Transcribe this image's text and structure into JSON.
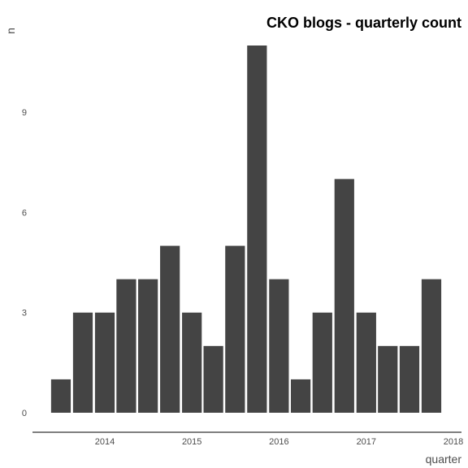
{
  "chart_data": {
    "type": "bar",
    "title": "CKO blogs - quarterly count",
    "xlabel": "quarter",
    "ylabel": "n",
    "categories": [
      "2013-Q3",
      "2013-Q4",
      "2014-Q1",
      "2014-Q2",
      "2014-Q3",
      "2014-Q4",
      "2015-Q1",
      "2015-Q2",
      "2015-Q3",
      "2015-Q4",
      "2016-Q1",
      "2016-Q2",
      "2016-Q3",
      "2016-Q4",
      "2017-Q1",
      "2017-Q2",
      "2017-Q3",
      "2017-Q4"
    ],
    "x": [
      "2013-07-01",
      "2013-10-01",
      "2014-01-01",
      "2014-04-01",
      "2014-07-01",
      "2014-10-01",
      "2015-01-01",
      "2015-04-01",
      "2015-07-01",
      "2015-10-01",
      "2016-01-01",
      "2016-04-01",
      "2016-07-01",
      "2016-10-01",
      "2017-01-01",
      "2017-04-01",
      "2017-07-01",
      "2017-10-01"
    ],
    "values": [
      1,
      3,
      3,
      4,
      4,
      5,
      3,
      2,
      5,
      11,
      4,
      1,
      3,
      7,
      3,
      2,
      2,
      4
    ],
    "ylim": [
      0,
      11
    ],
    "yticks": [
      "0",
      "3",
      "6",
      "9"
    ],
    "xticks": [
      "2014",
      "2015",
      "2016",
      "2017",
      "2018"
    ],
    "grid": false,
    "bar_color": "#444444",
    "axis_color": "#555555"
  }
}
